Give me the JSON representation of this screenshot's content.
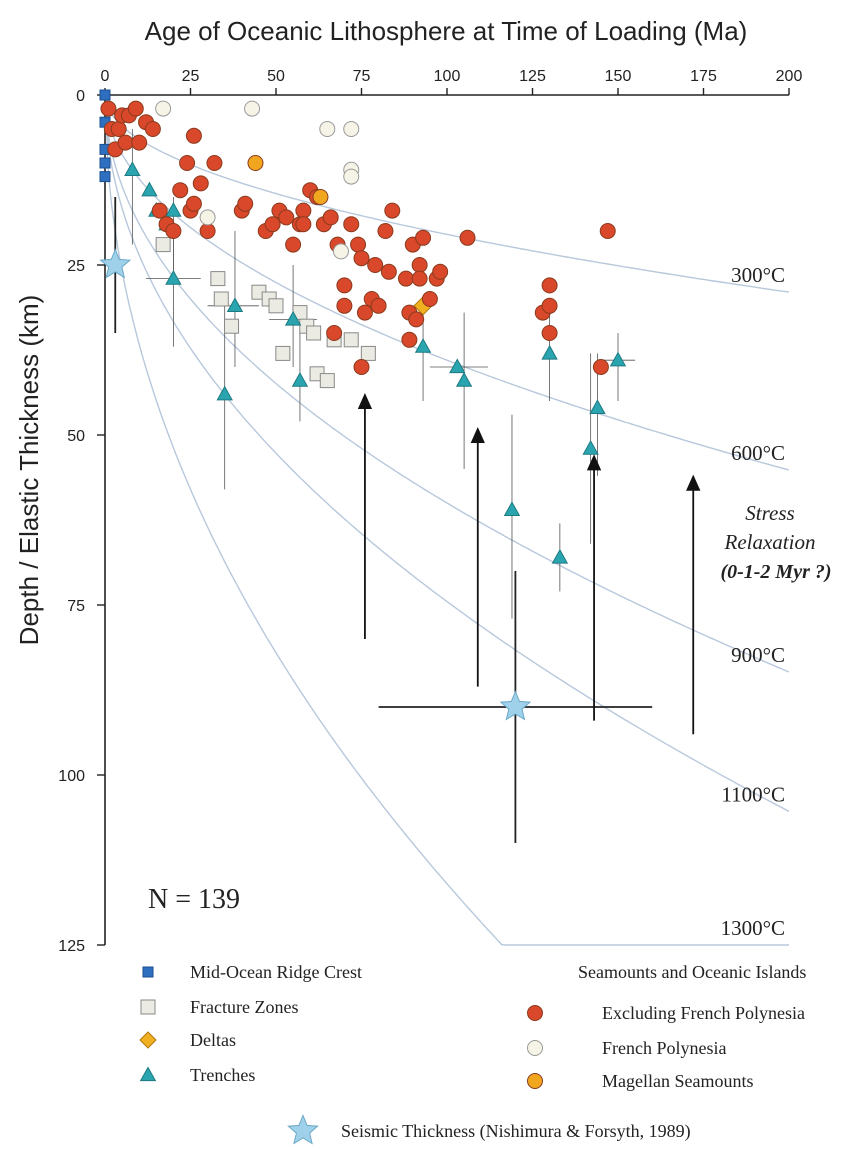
{
  "chart_data": {
    "type": "scatter",
    "xlabel": "Age of Oceanic Lithosphere at Time of Loading (Ma)",
    "ylabel": "Depth / Elastic Thickness (km)",
    "xlim": [
      0,
      200
    ],
    "ylim": [
      0,
      125
    ],
    "y_inverted": true,
    "x_axis_position": "top",
    "x_ticks": [
      "0",
      "25",
      "50",
      "75",
      "100",
      "125",
      "150",
      "175",
      "200"
    ],
    "y_ticks": [
      "0",
      "25",
      "50",
      "75",
      "100",
      "125"
    ],
    "grid": false,
    "legend_position": "bottom",
    "annotation_n": "N = 139",
    "stress_label": [
      "Stress",
      "Relaxation",
      "(0-1-2 Myr ?)"
    ],
    "isotherms": [
      {
        "label": "300°C",
        "k": 2.05,
        "color": "#b8c8dc"
      },
      {
        "label": "600°C",
        "k": 3.9,
        "color": "#b8c8dc"
      },
      {
        "label": "900°C",
        "k": 6.0,
        "color": "#b8c8dc"
      },
      {
        "label": "1100°C",
        "k": 7.45,
        "color": "#b8c8dc"
      },
      {
        "label": "1300°C",
        "k": 11.6,
        "color": "#b8c8dc"
      }
    ],
    "arrows": [
      {
        "x": 76,
        "y_from": 80,
        "y_to": 44
      },
      {
        "x": 109,
        "y_from": 87,
        "y_to": 49
      },
      {
        "x": 143,
        "y_from": 92,
        "y_to": 53
      },
      {
        "x": 172,
        "y_from": 94,
        "y_to": 56
      }
    ],
    "legend": {
      "ridge": "Mid-Ocean Ridge Crest",
      "fracture": "Fracture Zones",
      "deltas": "Deltas",
      "trenches": "Trenches",
      "seamounts_title": "Seamounts and Oceanic Islands",
      "excl": "Excluding French Polynesia",
      "fp": "French Polynesia",
      "magellan": "Magellan Seamounts",
      "seismic": "Seismic Thickness (Nishimura & Forsyth, 1989)"
    },
    "colors": {
      "ridge": "#2f6fc0",
      "fracture": "#ecebe3",
      "deltas": "#f0b020",
      "trenches": "#2aa5b0",
      "excl": "#d9482a",
      "fp": "#f6f4e6",
      "magellan": "#f0a61e",
      "seismic": "#9fd2ea"
    },
    "series": [
      {
        "name": "Mid-Ocean Ridge Crest",
        "key": "ridge",
        "marker": "square",
        "points": [
          [
            0,
            0
          ],
          [
            0,
            4
          ],
          [
            0,
            8
          ],
          [
            0,
            10
          ],
          [
            0,
            12
          ]
        ]
      },
      {
        "name": "Fracture Zones",
        "key": "fracture",
        "marker": "square",
        "points": [
          [
            17,
            22
          ],
          [
            33,
            27
          ],
          [
            34,
            30
          ],
          [
            37,
            34
          ],
          [
            45,
            29
          ],
          [
            48,
            30
          ],
          [
            50,
            31
          ],
          [
            52,
            38
          ],
          [
            57,
            32
          ],
          [
            59,
            34
          ],
          [
            61,
            35
          ],
          [
            62,
            41
          ],
          [
            65,
            42
          ],
          [
            67,
            36
          ],
          [
            72,
            36
          ],
          [
            77,
            38
          ]
        ]
      },
      {
        "name": "Deltas",
        "key": "deltas",
        "marker": "diamond",
        "points": [
          [
            93,
            31
          ]
        ]
      },
      {
        "name": "Trenches",
        "key": "trenches",
        "marker": "triangle",
        "points": [
          [
            8,
            11
          ],
          [
            13,
            14
          ],
          [
            15,
            17
          ],
          [
            18,
            19
          ],
          [
            20,
            17
          ],
          [
            20,
            27
          ],
          [
            35,
            44
          ],
          [
            38,
            31
          ],
          [
            55,
            33
          ],
          [
            57,
            42
          ],
          [
            103,
            40
          ],
          [
            105,
            42
          ],
          [
            119,
            61
          ],
          [
            130,
            38
          ],
          [
            133,
            68
          ],
          [
            142,
            52
          ],
          [
            144,
            46
          ],
          [
            150,
            39
          ],
          [
            93,
            37
          ]
        ],
        "err": [
          [
            null,
            [
              5,
              22
            ]
          ],
          [
            null,
            null
          ],
          [
            null,
            null
          ],
          [
            null,
            null
          ],
          [
            null,
            [
              15,
              27
            ]
          ],
          [
            [
              12,
              28
            ],
            [
              20,
              37
            ]
          ],
          [
            null,
            [
              30,
              58
            ]
          ],
          [
            [
              30,
              45
            ],
            [
              20,
              40
            ]
          ],
          [
            [
              48,
              62
            ],
            [
              25,
              40
            ]
          ],
          [
            null,
            [
              35,
              48
            ]
          ],
          [
            [
              95,
              112
            ],
            null
          ],
          [
            null,
            [
              32,
              55
            ]
          ],
          [
            null,
            [
              47,
              77
            ]
          ],
          [
            null,
            [
              32,
              45
            ]
          ],
          [
            null,
            [
              63,
              73
            ]
          ],
          [
            null,
            [
              38,
              66
            ]
          ],
          [
            null,
            [
              38,
              56
            ]
          ],
          [
            [
              145,
              155
            ],
            [
              35,
              45
            ]
          ],
          [
            null,
            [
              32,
              45
            ]
          ]
        ]
      },
      {
        "name": "Excluding French Polynesia",
        "key": "excl",
        "marker": "circle",
        "points": [
          [
            1,
            2
          ],
          [
            2,
            5
          ],
          [
            3,
            8
          ],
          [
            4,
            5
          ],
          [
            5,
            3
          ],
          [
            6,
            7
          ],
          [
            7,
            3
          ],
          [
            9,
            2
          ],
          [
            10,
            7
          ],
          [
            12,
            4
          ],
          [
            14,
            5
          ],
          [
            16,
            17
          ],
          [
            18,
            19
          ],
          [
            20,
            20
          ],
          [
            22,
            14
          ],
          [
            24,
            10
          ],
          [
            25,
            17
          ],
          [
            26,
            16
          ],
          [
            28,
            13
          ],
          [
            30,
            20
          ],
          [
            32,
            10
          ],
          [
            40,
            17
          ],
          [
            41,
            16
          ],
          [
            47,
            20
          ],
          [
            49,
            19
          ],
          [
            51,
            17
          ],
          [
            53,
            18
          ],
          [
            55,
            22
          ],
          [
            57,
            19
          ],
          [
            58,
            17
          ],
          [
            60,
            14
          ],
          [
            62,
            15
          ],
          [
            64,
            19
          ],
          [
            66,
            18
          ],
          [
            68,
            22
          ],
          [
            70,
            28
          ],
          [
            70,
            31
          ],
          [
            72,
            19
          ],
          [
            74,
            22
          ],
          [
            75,
            24
          ],
          [
            76,
            32
          ],
          [
            78,
            30
          ],
          [
            79,
            25
          ],
          [
            80,
            31
          ],
          [
            82,
            20
          ],
          [
            83,
            26
          ],
          [
            84,
            17
          ],
          [
            88,
            27
          ],
          [
            89,
            32
          ],
          [
            89,
            36
          ],
          [
            90,
            22
          ],
          [
            91,
            33
          ],
          [
            92,
            25
          ],
          [
            92,
            27
          ],
          [
            93,
            21
          ],
          [
            95,
            30
          ],
          [
            97,
            27
          ],
          [
            98,
            26
          ],
          [
            106,
            21
          ],
          [
            128,
            32
          ],
          [
            130,
            28
          ],
          [
            130,
            31
          ],
          [
            130,
            35
          ],
          [
            147,
            20
          ],
          [
            145,
            40
          ],
          [
            75,
            40
          ],
          [
            67,
            35
          ],
          [
            58,
            19
          ],
          [
            26,
            6
          ]
        ]
      },
      {
        "name": "French Polynesia",
        "key": "fp",
        "marker": "circle",
        "points": [
          [
            17,
            2
          ],
          [
            30,
            18
          ],
          [
            43,
            2
          ],
          [
            65,
            5
          ],
          [
            72,
            5
          ],
          [
            72,
            11
          ],
          [
            72,
            12
          ],
          [
            69,
            23
          ]
        ]
      },
      {
        "name": "Magellan Seamounts",
        "key": "magellan",
        "marker": "circle",
        "points": [
          [
            44,
            10
          ],
          [
            63,
            15
          ]
        ]
      },
      {
        "name": "Seismic Thickness (Nishimura & Forsyth, 1989)",
        "key": "seismic",
        "marker": "star",
        "points": [
          [
            3,
            25
          ],
          [
            120,
            90
          ]
        ],
        "err": [
          [
            null,
            [
              15,
              35
            ]
          ],
          [
            [
              80,
              160
            ],
            [
              70,
              110
            ]
          ]
        ]
      }
    ]
  }
}
